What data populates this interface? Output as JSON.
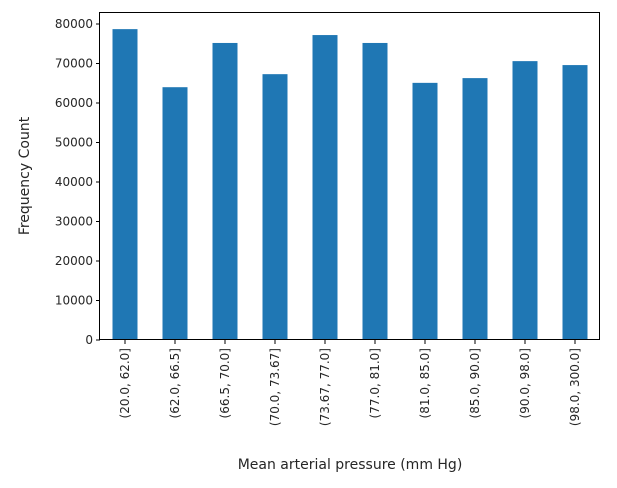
{
  "chart_data": {
    "type": "bar",
    "title": "",
    "xlabel": "Mean arterial pressure (mm Hg)",
    "ylabel": "Frequency Count",
    "categories": [
      "(20.0, 62.0]",
      "(62.0, 66.5]",
      "(66.5, 70.0]",
      "(70.0, 73.67]",
      "(73.67, 77.0]",
      "(77.0, 81.0]",
      "(81.0, 85.0]",
      "(85.0, 90.0]",
      "(90.0, 98.0]",
      "(98.0, 300.0]"
    ],
    "values": [
      78700,
      64000,
      75200,
      67300,
      77200,
      75200,
      65100,
      66300,
      70600,
      69600
    ],
    "ylim": [
      0,
      82500
    ],
    "yticks": [
      0,
      10000,
      20000,
      30000,
      40000,
      50000,
      60000,
      70000,
      80000
    ],
    "grid": false,
    "legend": null,
    "bar_color": "#1f77b4"
  }
}
